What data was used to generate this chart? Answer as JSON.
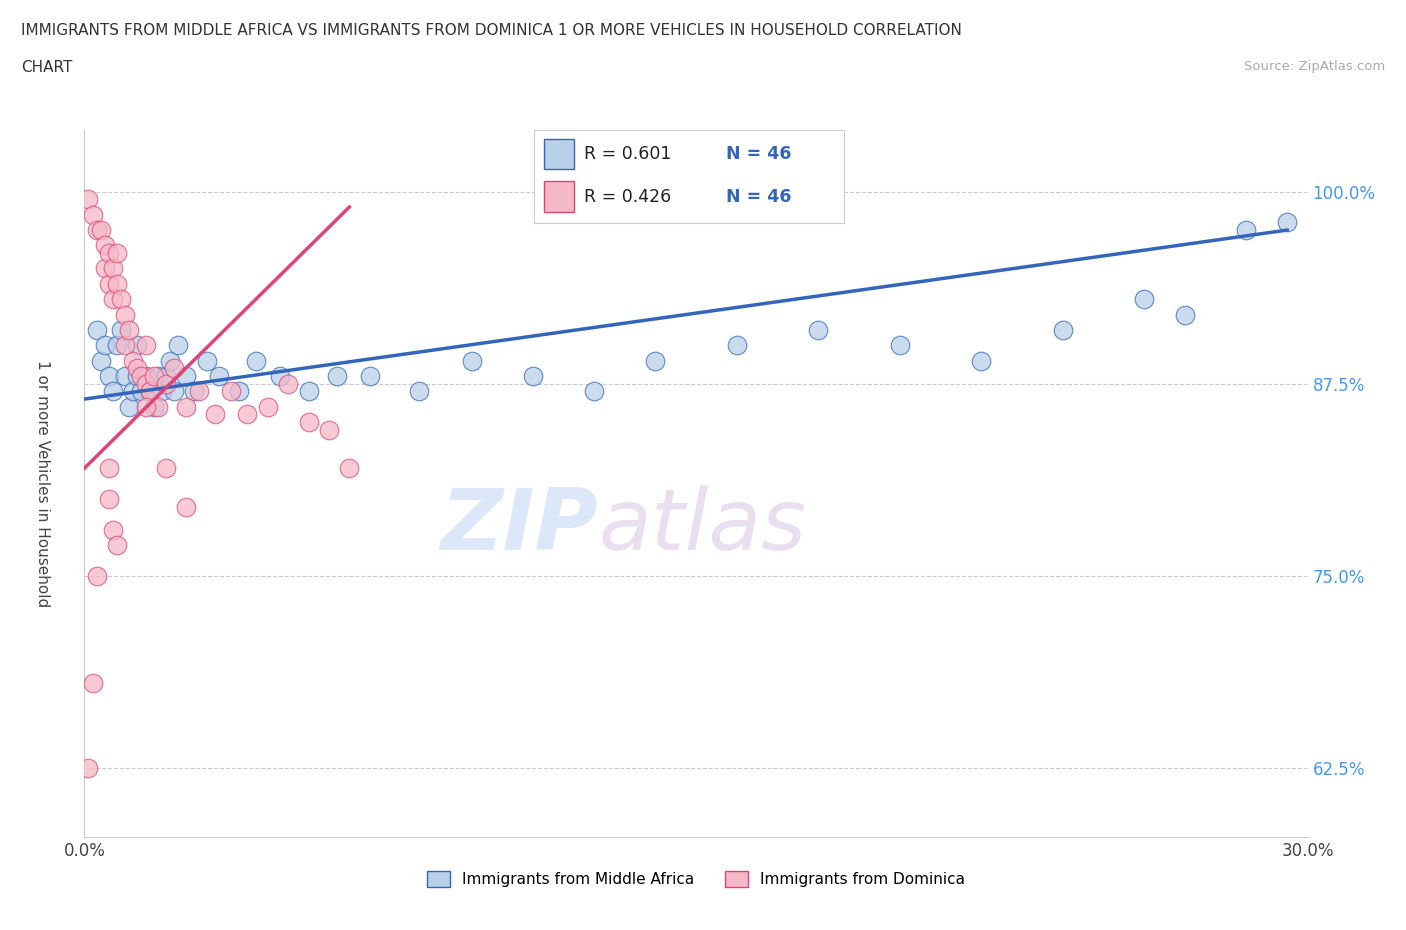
{
  "title_line1": "IMMIGRANTS FROM MIDDLE AFRICA VS IMMIGRANTS FROM DOMINICA 1 OR MORE VEHICLES IN HOUSEHOLD CORRELATION",
  "title_line2": "CHART",
  "source_text": "Source: ZipAtlas.com",
  "ylabel": "1 or more Vehicles in Household",
  "xmin": 0.0,
  "xmax": 0.3,
  "ymin": 0.58,
  "ymax": 1.04,
  "blue_scatter_x": [
    0.003,
    0.004,
    0.005,
    0.006,
    0.007,
    0.008,
    0.009,
    0.01,
    0.011,
    0.012,
    0.013,
    0.013,
    0.014,
    0.015,
    0.016,
    0.017,
    0.018,
    0.019,
    0.02,
    0.021,
    0.022,
    0.023,
    0.025,
    0.027,
    0.03,
    0.033,
    0.038,
    0.042,
    0.048,
    0.055,
    0.062,
    0.07,
    0.082,
    0.095,
    0.11,
    0.125,
    0.14,
    0.16,
    0.18,
    0.2,
    0.22,
    0.24,
    0.26,
    0.27,
    0.285,
    0.295
  ],
  "blue_scatter_y": [
    0.91,
    0.89,
    0.9,
    0.88,
    0.87,
    0.9,
    0.91,
    0.88,
    0.86,
    0.87,
    0.88,
    0.9,
    0.87,
    0.88,
    0.87,
    0.86,
    0.88,
    0.87,
    0.88,
    0.89,
    0.87,
    0.9,
    0.88,
    0.87,
    0.89,
    0.88,
    0.87,
    0.89,
    0.88,
    0.87,
    0.88,
    0.88,
    0.87,
    0.89,
    0.88,
    0.87,
    0.89,
    0.9,
    0.91,
    0.9,
    0.89,
    0.91,
    0.93,
    0.92,
    0.975,
    0.98
  ],
  "pink_scatter_x": [
    0.001,
    0.002,
    0.003,
    0.004,
    0.005,
    0.005,
    0.006,
    0.006,
    0.007,
    0.007,
    0.008,
    0.008,
    0.009,
    0.01,
    0.01,
    0.011,
    0.012,
    0.013,
    0.014,
    0.015,
    0.015,
    0.016,
    0.017,
    0.018,
    0.02,
    0.022,
    0.025,
    0.028,
    0.032,
    0.036,
    0.04,
    0.045,
    0.05,
    0.055,
    0.06,
    0.065,
    0.02,
    0.025,
    0.015,
    0.006,
    0.006,
    0.007,
    0.008,
    0.003,
    0.002,
    0.001
  ],
  "pink_scatter_y": [
    0.995,
    0.985,
    0.975,
    0.975,
    0.965,
    0.95,
    0.96,
    0.94,
    0.95,
    0.93,
    0.94,
    0.96,
    0.93,
    0.92,
    0.9,
    0.91,
    0.89,
    0.885,
    0.88,
    0.875,
    0.9,
    0.87,
    0.88,
    0.86,
    0.875,
    0.885,
    0.86,
    0.87,
    0.855,
    0.87,
    0.855,
    0.86,
    0.875,
    0.85,
    0.845,
    0.82,
    0.82,
    0.795,
    0.86,
    0.82,
    0.8,
    0.78,
    0.77,
    0.75,
    0.68,
    0.625
  ],
  "blue_R": 0.601,
  "blue_N": 46,
  "pink_R": 0.426,
  "pink_N": 46,
  "blue_color": "#b8d0e8",
  "pink_color": "#f5b8c8",
  "blue_line_color": "#3366bb",
  "pink_line_color": "#dd4477",
  "watermark_zip_color": "#c8d8f0",
  "watermark_atlas_color": "#d8c8e8",
  "legend_label_blue": "Immigrants from Middle Africa",
  "legend_label_pink": "Immigrants from Dominica",
  "grid_color": "#cccccc",
  "ytick_color": "#4499ee"
}
